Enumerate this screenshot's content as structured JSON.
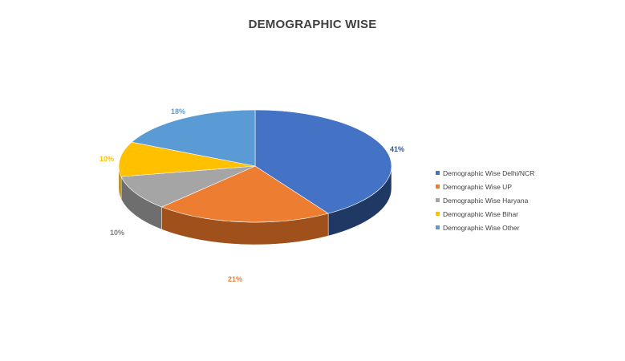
{
  "chart_data": {
    "type": "pie",
    "title": "DEMOGRAPHIC WISE",
    "style": "3d",
    "legend_position": "right",
    "slices": [
      {
        "name": "Demographic Wise Delhi/NCR",
        "value": 41,
        "label": "41%",
        "color": "#4472C4",
        "side_color": "#1F3864",
        "label_color": "#2F5597"
      },
      {
        "name": "Demographic Wise UP",
        "value": 21,
        "label": "21%",
        "color": "#ED7D31",
        "side_color": "#A0501A",
        "label_color": "#ED7D31"
      },
      {
        "name": "Demographic Wise Haryana",
        "value": 10,
        "label": "10%",
        "color": "#A5A5A5",
        "side_color": "#6E6E6E",
        "label_color": "#7F7F7F"
      },
      {
        "name": "Demographic Wise Bihar",
        "value": 10,
        "label": "10%",
        "color": "#FFC000",
        "side_color": "#B38600",
        "label_color": "#FFC000"
      },
      {
        "name": "Demographic Wise Other",
        "value": 18,
        "label": "18%",
        "color": "#5B9BD5",
        "side_color": "#2E6DA4",
        "label_color": "#5B9BD5"
      }
    ]
  }
}
